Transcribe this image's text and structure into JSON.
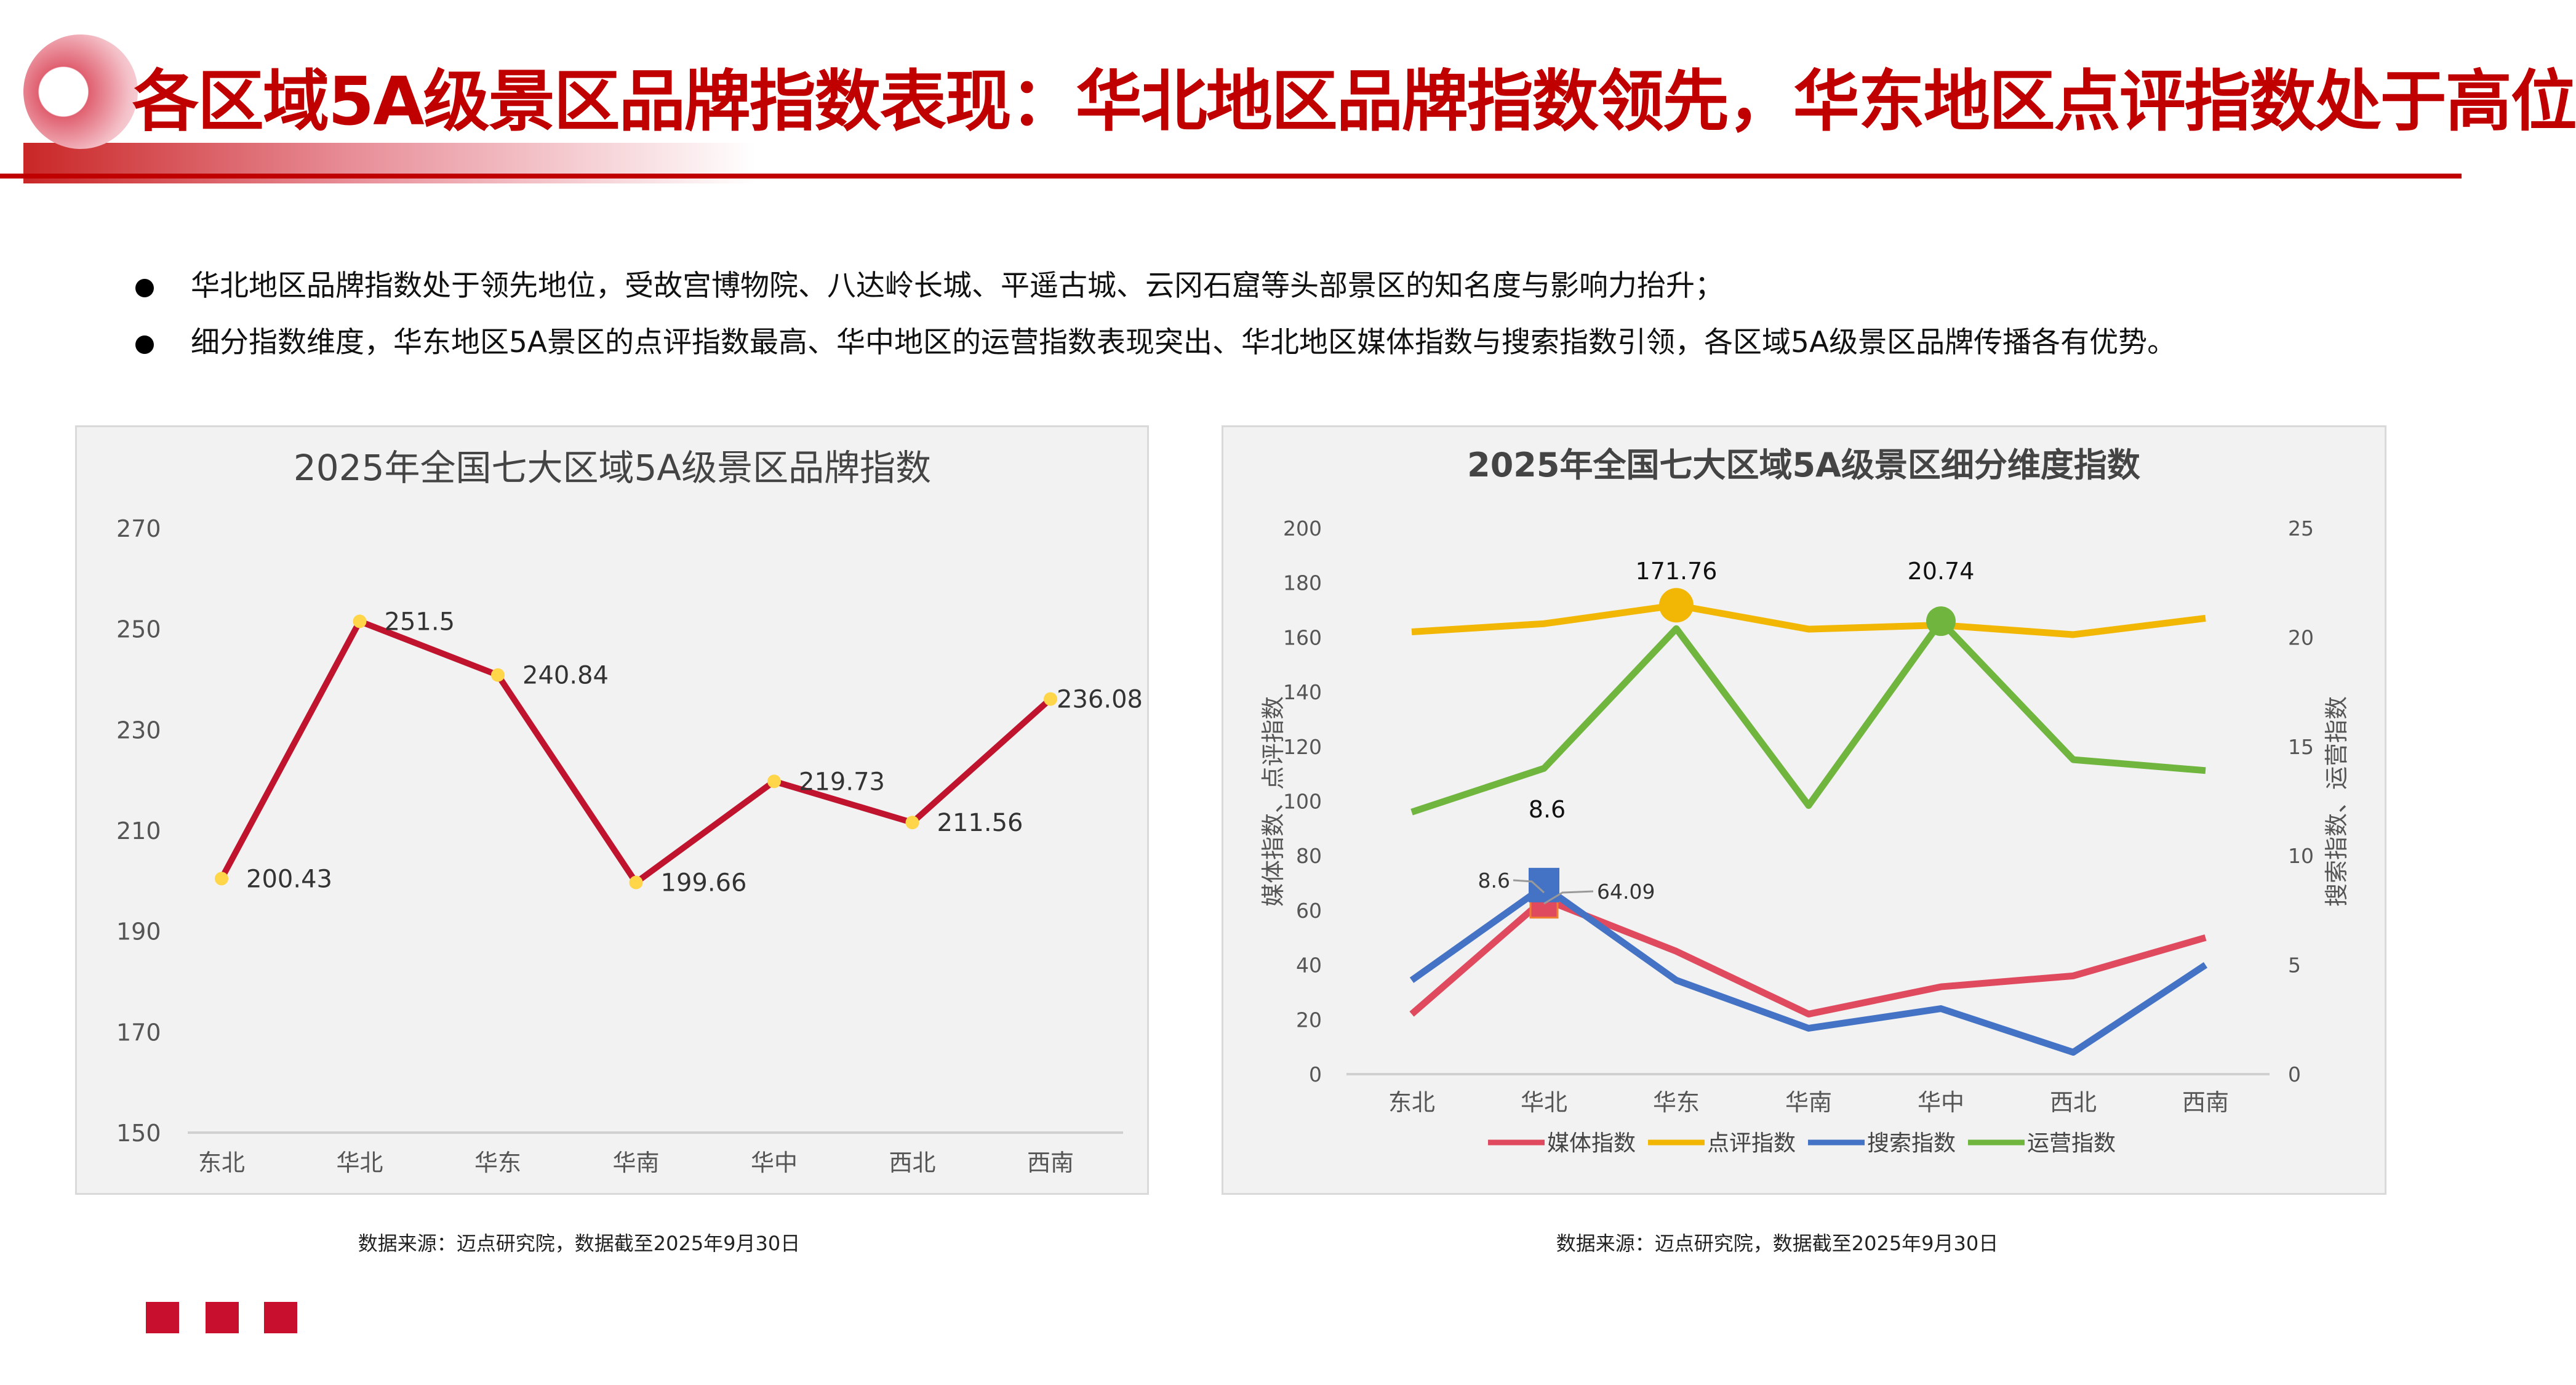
{
  "header": {
    "title": "各区域5A级景区品牌指数表现：华北地区品牌指数领先，华东地区点评指数处于高位"
  },
  "bullets": [
    "华北地区品牌指数处于领先地位，受故宫博物院、八达岭长城、平遥古城、云冈石窟等头部景区的知名度与影响力抬升；",
    "细分指数维度，华东地区5A景区的点评指数最高、华中地区的运营指数表现突出、华北地区媒体指数与搜索指数引领，各区域5A级景区品牌传播各有优势。"
  ],
  "sources": [
    "数据来源：迈点研究院，数据截至2025年9月30日",
    "数据来源：迈点研究院，数据截至2025年9月30日"
  ],
  "colors": {
    "accent": "#c00000",
    "line_left": "#c0142e",
    "marker_left": "#ffd54a",
    "media": "#e04a5f",
    "review": "#f2b705",
    "search": "#4472c4",
    "operation": "#70b63e"
  },
  "chart_data": [
    {
      "type": "line",
      "title": "2025年全国七大区域5A级景区品牌指数",
      "categories": [
        "东北",
        "华北",
        "华东",
        "华南",
        "华中",
        "西北",
        "西南"
      ],
      "values": [
        200.43,
        251.5,
        240.84,
        199.66,
        219.73,
        211.56,
        236.08
      ],
      "data_labels": [
        "200.43",
        "251.5",
        "240.84",
        "199.66",
        "219.73",
        "211.56",
        "236.08"
      ],
      "ylim": [
        150,
        270
      ],
      "yticks": [
        "150",
        "170",
        "190",
        "210",
        "230",
        "250",
        "270"
      ],
      "grid": false
    },
    {
      "type": "line",
      "title": "2025年全国七大区域5A级景区细分维度指数",
      "categories": [
        "东北",
        "华北",
        "华东",
        "华南",
        "华中",
        "西北",
        "西南"
      ],
      "ylabel": "媒体指数、点评指数",
      "y2label": "搜索指数、运营指数",
      "ylim": [
        0,
        200
      ],
      "y2lim": [
        0,
        25
      ],
      "yticks": [
        "0",
        "20",
        "40",
        "60",
        "80",
        "100",
        "120",
        "140",
        "160",
        "180",
        "200"
      ],
      "y2ticks": [
        "0",
        "5",
        "10",
        "15",
        "20",
        "25"
      ],
      "legend_position": "bottom",
      "series": [
        {
          "name": "媒体指数",
          "axis": "left",
          "values": [
            22,
            64.09,
            45,
            22,
            32,
            36,
            50
          ]
        },
        {
          "name": "点评指数",
          "axis": "left",
          "values": [
            162,
            165,
            171.76,
            163,
            164.5,
            161,
            167
          ]
        },
        {
          "name": "搜索指数",
          "axis": "right",
          "values": [
            4.3,
            8.6,
            4.3,
            2.1,
            3.0,
            1.0,
            5.0
          ]
        },
        {
          "name": "运营指数",
          "axis": "right",
          "values": [
            12.0,
            14.0,
            20.4,
            12.3,
            20.74,
            14.4,
            13.9
          ]
        }
      ],
      "annotations": [
        "171.76",
        "20.74",
        "8.6",
        "8.6",
        "64.09"
      ]
    }
  ]
}
